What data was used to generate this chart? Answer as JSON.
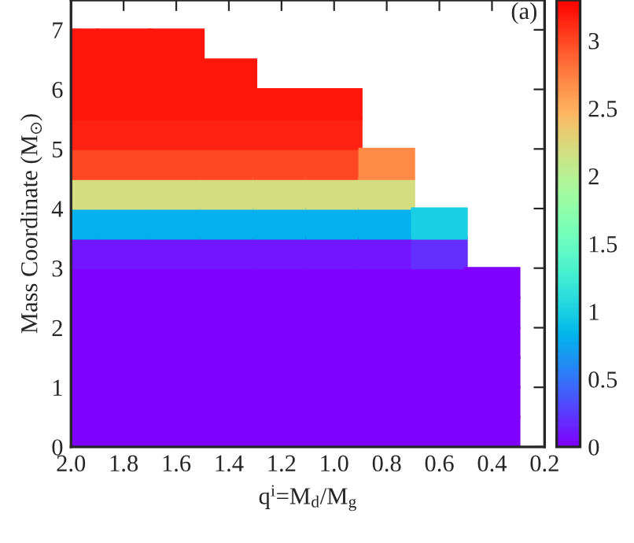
{
  "chart_data": {
    "type": "scatter",
    "xlabel": "q$^{i}$=M$_{d}$/M$_{g}$",
    "ylabel": "Mass Coordinate (M$_{⊙}$)",
    "annotations": [
      "(a)"
    ],
    "xlim": [
      2.0,
      0.2
    ],
    "xticks": [
      {
        "value": 2,
        "label": "2.0"
      },
      1.8,
      1.6,
      1.4,
      1.2,
      {
        "value": 1,
        "label": "1.0"
      },
      0.8,
      0.6,
      0.4,
      0.2
    ],
    "ylim": [
      0,
      7.5
    ],
    "yticks": [
      0,
      1,
      2,
      3,
      4,
      5,
      6,
      7
    ],
    "clim": [
      0,
      3.3
    ],
    "cticks": [
      0,
      0.5,
      1,
      1.5,
      2,
      2.5,
      3
    ],
    "marker": "square",
    "grid": false,
    "legend": false,
    "x": [
      2.0,
      2.0,
      2.0,
      2.0,
      2.0,
      2.0,
      2.0,
      2.0,
      2.0,
      2.0,
      2.0,
      2.0,
      2.0,
      2.0,
      1.8,
      1.8,
      1.8,
      1.8,
      1.8,
      1.8,
      1.8,
      1.8,
      1.8,
      1.8,
      1.8,
      1.8,
      1.8,
      1.8,
      1.6,
      1.6,
      1.6,
      1.6,
      1.6,
      1.6,
      1.6,
      1.6,
      1.6,
      1.6,
      1.6,
      1.6,
      1.6,
      1.6,
      1.4,
      1.4,
      1.4,
      1.4,
      1.4,
      1.4,
      1.4,
      1.4,
      1.4,
      1.4,
      1.4,
      1.4,
      1.4,
      1.2,
      1.2,
      1.2,
      1.2,
      1.2,
      1.2,
      1.2,
      1.2,
      1.2,
      1.2,
      1.2,
      1.2,
      1.0,
      1.0,
      1.0,
      1.0,
      1.0,
      1.0,
      1.0,
      1.0,
      1.0,
      1.0,
      1.0,
      1.0,
      0.8,
      0.8,
      0.8,
      0.8,
      0.8,
      0.8,
      0.8,
      0.8,
      0.8,
      0.8,
      0.6,
      0.6,
      0.6,
      0.6,
      0.6,
      0.6,
      0.6,
      0.6,
      0.4,
      0.4,
      0.4,
      0.4,
      0.4,
      0.4
    ],
    "values": [
      0.25,
      0.75,
      1.25,
      1.75,
      2.25,
      2.75,
      3.25,
      3.75,
      4.25,
      4.75,
      5.25,
      5.75,
      6.25,
      6.75,
      0.25,
      0.75,
      1.25,
      1.75,
      2.25,
      2.75,
      3.25,
      3.75,
      4.25,
      4.75,
      5.25,
      5.75,
      6.25,
      6.75,
      0.25,
      0.75,
      1.25,
      1.75,
      2.25,
      2.75,
      3.25,
      3.75,
      4.25,
      4.75,
      5.25,
      5.75,
      6.25,
      6.75,
      0.25,
      0.75,
      1.25,
      1.75,
      2.25,
      2.75,
      3.25,
      3.75,
      4.25,
      4.75,
      5.25,
      5.75,
      6.25,
      0.25,
      0.75,
      1.25,
      1.75,
      2.25,
      2.75,
      3.25,
      3.75,
      4.25,
      4.75,
      5.25,
      5.75,
      0.25,
      0.75,
      1.25,
      1.75,
      2.25,
      2.75,
      3.25,
      3.75,
      4.25,
      4.75,
      5.25,
      5.75,
      0.25,
      0.75,
      1.25,
      1.75,
      2.25,
      2.75,
      3.25,
      3.75,
      4.25,
      4.75,
      0.25,
      0.75,
      1.25,
      1.75,
      2.25,
      2.75,
      3.25,
      3.75,
      0.25,
      0.75,
      1.25,
      1.75,
      2.25,
      2.75
    ],
    "cvalues": [
      0,
      0,
      0,
      0,
      0,
      0,
      0.1,
      0.8,
      2.2,
      3.0,
      3.15,
      3.2,
      3.2,
      3.2,
      0,
      0,
      0,
      0,
      0,
      0,
      0.1,
      0.8,
      2.2,
      3.0,
      3.15,
      3.2,
      3.2,
      3.2,
      0,
      0,
      0,
      0,
      0,
      0,
      0.1,
      0.8,
      2.2,
      3.0,
      3.15,
      3.2,
      3.2,
      3.2,
      0,
      0,
      0,
      0,
      0,
      0,
      0.1,
      0.8,
      2.2,
      3.0,
      3.15,
      3.2,
      3.2,
      0,
      0,
      0,
      0,
      0,
      0,
      0.1,
      0.8,
      2.2,
      3.0,
      3.15,
      3.2,
      0,
      0,
      0,
      0,
      0,
      0,
      0.1,
      0.8,
      2.2,
      3.0,
      3.15,
      3.2,
      0,
      0,
      0,
      0,
      0,
      0,
      0.1,
      0.8,
      2.2,
      2.7,
      0,
      0,
      0,
      0,
      0,
      0,
      0.2,
      1.0,
      0,
      0,
      0,
      0,
      0,
      0
    ]
  }
}
